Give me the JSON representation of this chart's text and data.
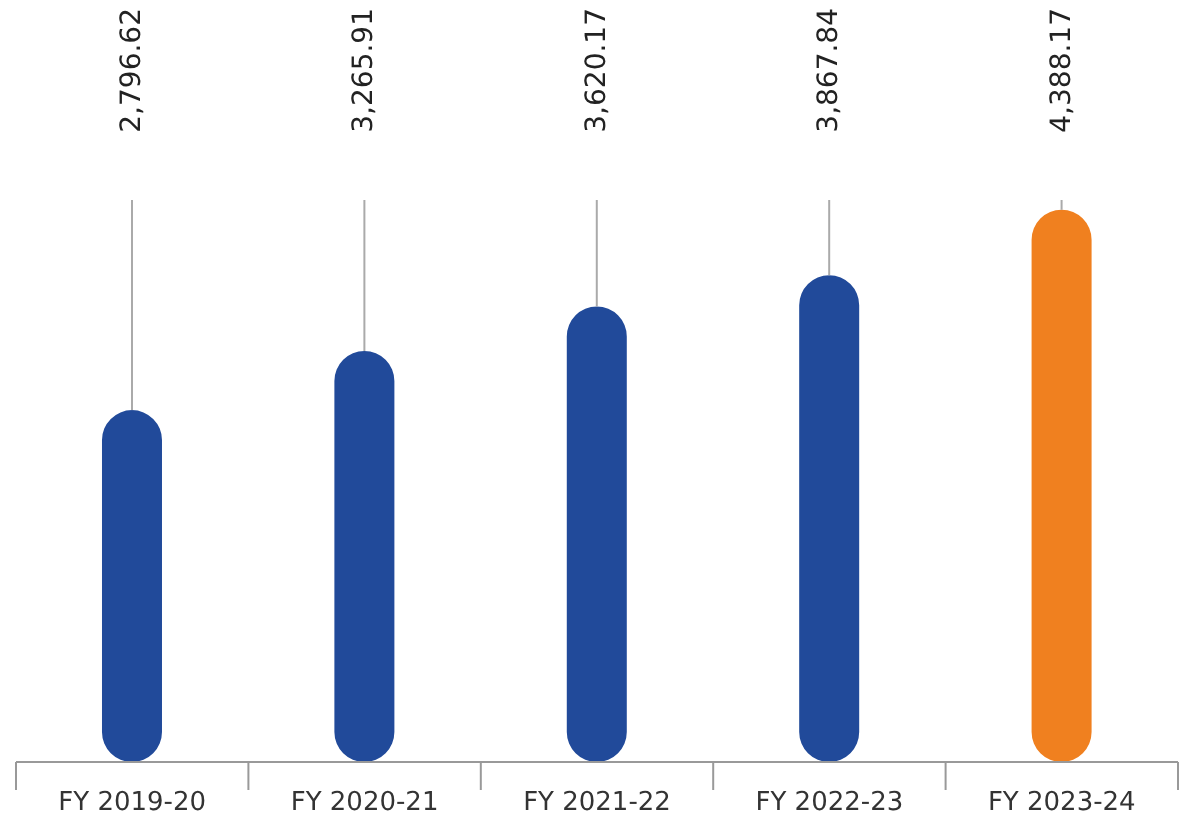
{
  "chart_data": {
    "type": "bar",
    "categories": [
      "FY 2019-20",
      "FY 2020-21",
      "FY 2021-22",
      "FY 2022-23",
      "FY 2023-24"
    ],
    "values": [
      2796.62,
      3265.91,
      3620.17,
      3867.84,
      4388.17
    ],
    "colors": [
      "#214a9a",
      "#214a9a",
      "#214a9a",
      "#214a9a",
      "#f0801f"
    ],
    "value_labels": [
      "2,796.62",
      "3,265.91",
      "3,620.17",
      "3,867.84",
      "4,388.17"
    ]
  }
}
